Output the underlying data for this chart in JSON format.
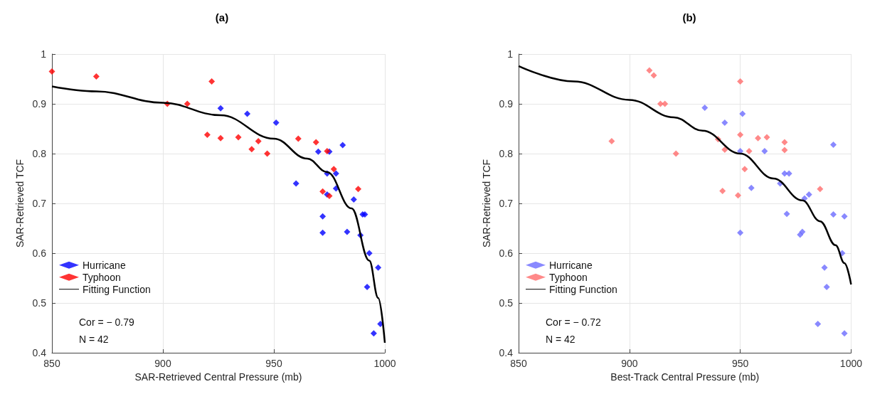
{
  "chart_data": [
    {
      "type": "scatter",
      "title": "(a)",
      "xlabel": "SAR-Retrieved Central Pressure (mb)",
      "ylabel": "SAR-Retrieved TCF",
      "xlim": [
        850,
        1000
      ],
      "xticks": [
        850,
        900,
        950,
        1000
      ],
      "ylim": [
        0.4,
        1
      ],
      "yticks": [
        0.4,
        0.5,
        0.6,
        0.7,
        0.8,
        0.9,
        1
      ],
      "grid": true,
      "legend": "bottom left",
      "annotations": [
        "Cor = − 0.79",
        "N = 42"
      ],
      "series": [
        {
          "name": "Hurricane",
          "color": "#0000ff",
          "marker": "diamond",
          "x": [
            926,
            938,
            951,
            970,
            975,
            981,
            960,
            974,
            978,
            978,
            974,
            972,
            972,
            983,
            986,
            990,
            991,
            989,
            993,
            997,
            992,
            995,
            998
          ],
          "values": [
            0.891,
            0.88,
            0.862,
            0.804,
            0.804,
            0.817,
            0.74,
            0.76,
            0.76,
            0.73,
            0.718,
            0.674,
            0.641,
            0.643,
            0.708,
            0.678,
            0.678,
            0.636,
            0.6,
            0.571,
            0.532,
            0.439,
            0.458
          ]
        },
        {
          "name": "Typhoon",
          "color": "#ff0000",
          "marker": "diamond",
          "x": [
            850,
            870,
            902,
            911,
            922,
            920,
            926,
            934,
            940,
            943,
            947,
            961,
            969,
            974,
            977,
            972,
            975,
            988
          ],
          "values": [
            0.965,
            0.955,
            0.9,
            0.9,
            0.945,
            0.838,
            0.831,
            0.833,
            0.809,
            0.825,
            0.8,
            0.83,
            0.823,
            0.805,
            0.769,
            0.724,
            0.715,
            0.729
          ]
        },
        {
          "name": "Fitting Function",
          "type": "line",
          "color": "#000000",
          "marker": "none",
          "x": [
            850,
            870,
            900,
            926,
            950,
            965,
            974,
            985,
            993,
            997,
            1000
          ],
          "values": [
            0.935,
            0.925,
            0.902,
            0.877,
            0.83,
            0.79,
            0.763,
            0.69,
            0.585,
            0.51,
            0.42
          ]
        }
      ]
    },
    {
      "type": "scatter",
      "title": "(b)",
      "xlabel": "Best-Track Central Pressure (mb)",
      "ylabel": "SAR-Retrieved TCF",
      "xlim": [
        850,
        1000
      ],
      "xticks": [
        850,
        900,
        950,
        1000
      ],
      "ylim": [
        0.4,
        1
      ],
      "yticks": [
        0.4,
        0.5,
        0.6,
        0.7,
        0.8,
        0.9,
        1
      ],
      "grid": true,
      "legend": "bottom left",
      "annotations": [
        "Cor = − 0.72",
        "N = 42"
      ],
      "series": [
        {
          "name": "Hurricane",
          "color": "#6b6bff",
          "marker": "diamond",
          "x": [
            934,
            943,
            951,
            950,
            961,
            992,
            955,
            968,
            970,
            972,
            971,
            979,
            981,
            977,
            978,
            950,
            992,
            997,
            996,
            988,
            989,
            985,
            997
          ],
          "values": [
            0.892,
            0.862,
            0.88,
            0.805,
            0.805,
            0.818,
            0.731,
            0.74,
            0.76,
            0.76,
            0.679,
            0.71,
            0.718,
            0.637,
            0.643,
            0.641,
            0.678,
            0.674,
            0.6,
            0.571,
            0.532,
            0.458,
            0.439
          ]
        },
        {
          "name": "Typhoon",
          "color": "#ff6b6b",
          "marker": "diamond",
          "x": [
            892,
            909,
            911,
            914,
            916,
            921,
            940,
            943,
            942,
            950,
            950,
            958,
            962,
            954,
            970,
            970,
            952,
            949,
            986
          ],
          "values": [
            0.825,
            0.967,
            0.957,
            0.9,
            0.9,
            0.8,
            0.829,
            0.808,
            0.725,
            0.945,
            0.838,
            0.831,
            0.833,
            0.805,
            0.823,
            0.807,
            0.769,
            0.716,
            0.729
          ]
        },
        {
          "name": "Fitting Function",
          "type": "line",
          "color": "#000000",
          "marker": "none",
          "x": [
            850,
            875,
            900,
            920,
            933,
            950,
            965,
            978,
            986,
            993,
            997,
            1000
          ],
          "values": [
            0.976,
            0.945,
            0.908,
            0.873,
            0.846,
            0.8,
            0.75,
            0.706,
            0.664,
            0.616,
            0.58,
            0.537
          ]
        }
      ]
    }
  ]
}
